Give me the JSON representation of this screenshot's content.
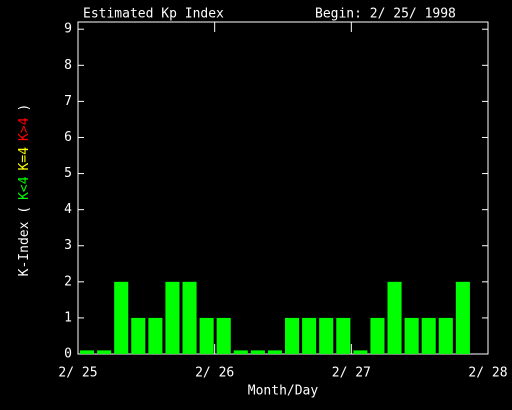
{
  "chart_data": {
    "type": "bar",
    "title": "Estimated Kp Index",
    "subtitle": "Begin: 2/ 25/ 1998",
    "x_label": "Month/Day",
    "y_label_parts": [
      {
        "text": "K-Index (",
        "color": "#ffffff"
      },
      {
        "text": "K<4",
        "color": "#00ff00"
      },
      {
        "text": "K=4",
        "color": "#ffff00"
      },
      {
        "text": "K>4",
        "color": "#ff0000"
      },
      {
        "text": ")",
        "color": "#ffffff"
      }
    ],
    "x": [
      0,
      0.125,
      0.25,
      0.375,
      0.5,
      0.625,
      0.75,
      0.875,
      1,
      1.125,
      1.25,
      1.375,
      1.5,
      1.625,
      1.75,
      1.875,
      2,
      2.125,
      2.25,
      2.375,
      2.5,
      2.625,
      2.75,
      2.875
    ],
    "values": [
      0.1,
      0.1,
      2,
      1,
      1,
      2,
      2,
      1,
      1,
      0.1,
      0.1,
      0.1,
      1,
      1,
      1,
      1,
      0.1,
      1,
      2,
      1,
      1,
      1,
      2,
      null
    ],
    "color": "#00ff00",
    "xlim": [
      0,
      3
    ],
    "xticks": [
      {
        "value": 0,
        "label": "2/ 25"
      },
      {
        "value": 1,
        "label": "2/ 26"
      },
      {
        "value": 2,
        "label": "2/ 27"
      },
      {
        "value": 3,
        "label": "2/ 28"
      }
    ],
    "ylim": [
      0,
      9.2
    ],
    "yticks": [
      0,
      1,
      2,
      3,
      4,
      5,
      6,
      7,
      8,
      9
    ]
  }
}
